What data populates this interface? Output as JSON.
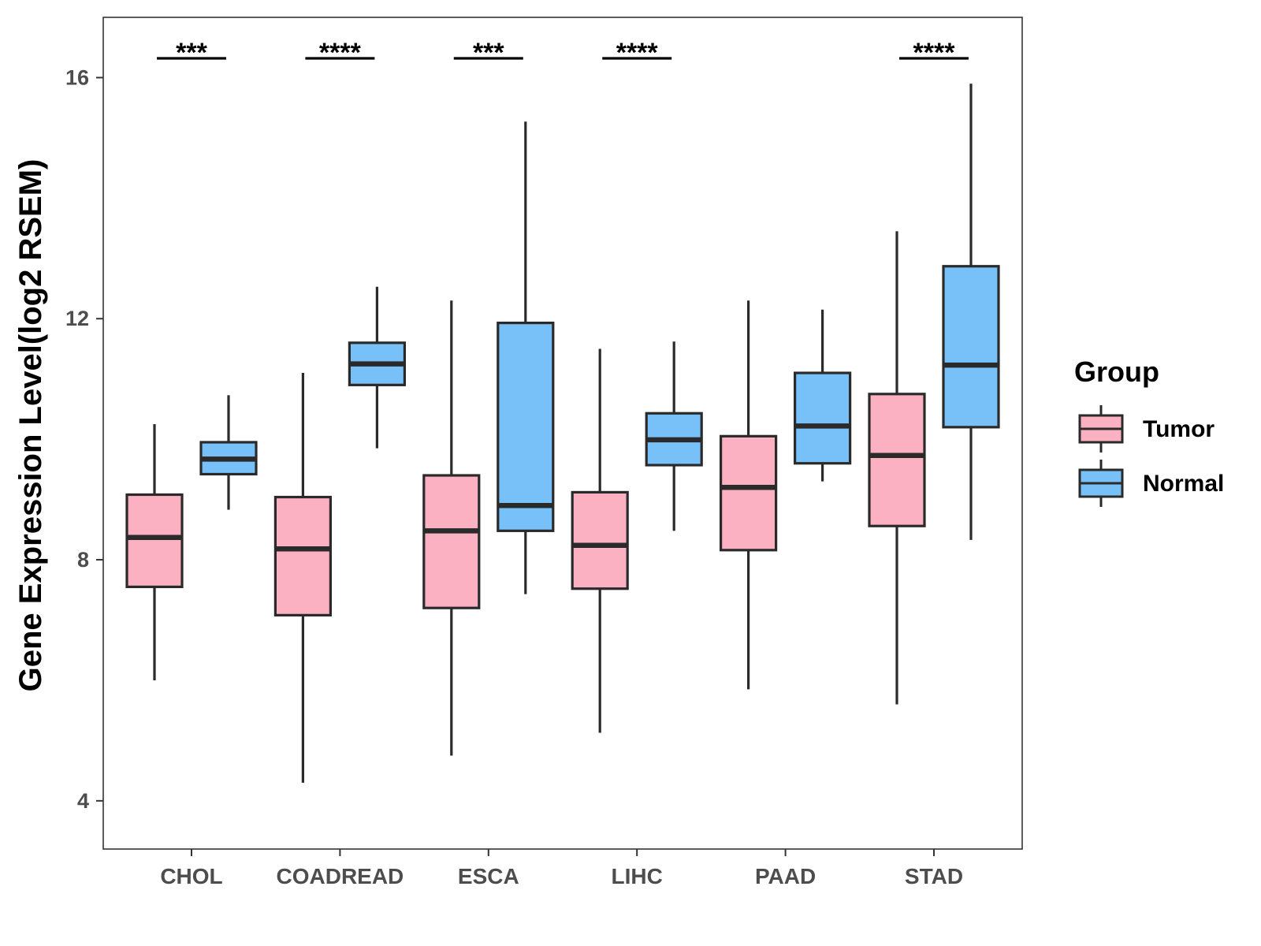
{
  "chart_data": {
    "type": "boxplot",
    "title": "",
    "xlabel": "",
    "ylabel": "Gene Expression Level(log2 RSEM)",
    "ylim": [
      3.2,
      17.0
    ],
    "yticks": [
      4,
      8,
      12,
      16
    ],
    "grid": false,
    "categories": [
      "CHOL",
      "COADREAD",
      "ESCA",
      "LIHC",
      "PAAD",
      "STAD"
    ],
    "legend": {
      "title": "Group",
      "position": "right",
      "entries": [
        "Tumor",
        "Normal"
      ]
    },
    "series": [
      {
        "name": "Tumor",
        "color": "#FBB1C2",
        "boxes": [
          {
            "whisker_low": 6.0,
            "q1": 7.55,
            "median": 8.37,
            "q3": 9.08,
            "whisker_high": 10.25
          },
          {
            "whisker_low": 4.3,
            "q1": 7.08,
            "median": 8.18,
            "q3": 9.04,
            "whisker_high": 11.1
          },
          {
            "whisker_low": 4.75,
            "q1": 7.2,
            "median": 8.48,
            "q3": 9.4,
            "whisker_high": 12.3
          },
          {
            "whisker_low": 5.13,
            "q1": 7.52,
            "median": 8.24,
            "q3": 9.12,
            "whisker_high": 11.5
          },
          {
            "whisker_low": 5.85,
            "q1": 8.16,
            "median": 9.2,
            "q3": 10.05,
            "whisker_high": 12.3
          },
          {
            "whisker_low": 5.6,
            "q1": 8.56,
            "median": 9.73,
            "q3": 10.75,
            "whisker_high": 13.45
          }
        ]
      },
      {
        "name": "Normal",
        "color": "#77C1F8",
        "boxes": [
          {
            "whisker_low": 8.83,
            "q1": 9.42,
            "median": 9.67,
            "q3": 9.95,
            "whisker_high": 10.73
          },
          {
            "whisker_low": 9.85,
            "q1": 10.9,
            "median": 11.25,
            "q3": 11.6,
            "whisker_high": 12.53
          },
          {
            "whisker_low": 7.43,
            "q1": 8.48,
            "median": 8.9,
            "q3": 11.93,
            "whisker_high": 15.27
          },
          {
            "whisker_low": 8.48,
            "q1": 9.57,
            "median": 9.99,
            "q3": 10.43,
            "whisker_high": 11.62
          },
          {
            "whisker_low": 9.3,
            "q1": 9.6,
            "median": 10.22,
            "q3": 11.1,
            "whisker_high": 12.15
          },
          {
            "whisker_low": 8.33,
            "q1": 10.2,
            "median": 11.23,
            "q3": 12.87,
            "whisker_high": 15.9
          }
        ]
      }
    ],
    "significance": [
      "***",
      "****",
      "***",
      "****",
      "",
      "****"
    ]
  }
}
